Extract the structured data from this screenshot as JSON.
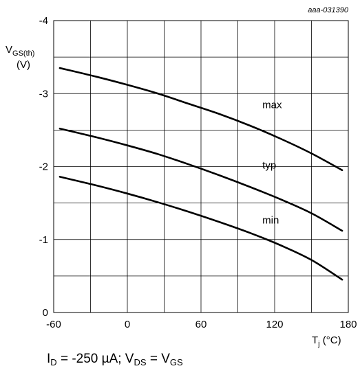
{
  "figure_id": "aaa-031390",
  "caption": {
    "id_sym": "I",
    "id_sub": "D",
    "id_val": " = -250 µA; V",
    "vds_sub": "DS",
    "eq": " = V",
    "vgs_sub": "GS"
  },
  "chart_data": {
    "type": "line",
    "xlabel": {
      "main": "T",
      "sub": "j",
      "unit": " (°C)"
    },
    "ylabel": {
      "main": "V",
      "sub": "GS(th)",
      "unit": "(V)"
    },
    "xlim": [
      -60,
      180
    ],
    "ylim": [
      0,
      -4
    ],
    "x_ticks": [
      -60,
      0,
      60,
      120,
      180
    ],
    "x_tick_labels": [
      "-60",
      "0",
      "60",
      "120",
      "180"
    ],
    "y_ticks": [
      0,
      -1,
      -2,
      -3,
      -4
    ],
    "y_tick_labels": [
      "0",
      "-1",
      "-2",
      "-3",
      "-4"
    ],
    "x_grid": [
      -60,
      -30,
      0,
      30,
      60,
      90,
      120,
      150,
      180
    ],
    "y_grid": [
      0,
      -0.5,
      -1,
      -1.5,
      -2,
      -2.5,
      -3,
      -3.5,
      -4
    ],
    "grid": true,
    "series": [
      {
        "name": "max",
        "x": [
          -55,
          -25,
          0,
          25,
          50,
          75,
          100,
          125,
          150,
          175
        ],
        "y": [
          -3.35,
          -3.23,
          -3.12,
          -3.0,
          -2.86,
          -2.72,
          -2.56,
          -2.38,
          -2.18,
          -1.95
        ]
      },
      {
        "name": "typ",
        "x": [
          -55,
          -25,
          0,
          25,
          50,
          75,
          100,
          125,
          150,
          175
        ],
        "y": [
          -2.52,
          -2.4,
          -2.29,
          -2.17,
          -2.03,
          -1.88,
          -1.72,
          -1.55,
          -1.36,
          -1.12
        ]
      },
      {
        "name": "min",
        "x": [
          -55,
          -25,
          0,
          25,
          50,
          75,
          100,
          125,
          150,
          175
        ],
        "y": [
          -1.86,
          -1.74,
          -1.63,
          -1.51,
          -1.38,
          -1.24,
          -1.09,
          -0.92,
          -0.72,
          -0.45
        ]
      }
    ],
    "curve_labels": [
      {
        "text": "max",
        "x": 110,
        "y": -2.8
      },
      {
        "text": "typ",
        "x": 110,
        "y": -1.97
      },
      {
        "text": "min",
        "x": 110,
        "y": -1.22
      }
    ]
  }
}
